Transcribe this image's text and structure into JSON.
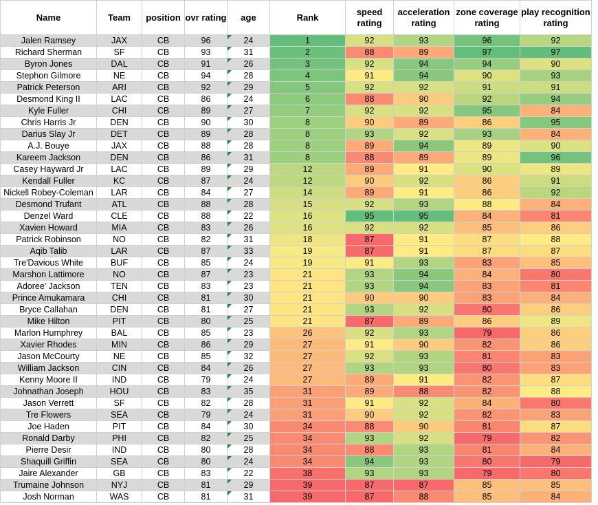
{
  "chart_data": {
    "type": "table",
    "columns": [
      "Name",
      "Team",
      "position",
      "ovr rating",
      "age",
      "Rank",
      "speed rating",
      "acceleration rating",
      "zone coverage rating",
      "play recognition rating"
    ],
    "rows": [
      [
        "Jalen Ramsey",
        "JAX",
        "CB",
        "96",
        "24",
        "1",
        "92",
        "93",
        "96",
        "92"
      ],
      [
        "Richard Sherman",
        "SF",
        "CB",
        "93",
        "31",
        "2",
        "88",
        "89",
        "97",
        "97"
      ],
      [
        "Byron Jones",
        "DAL",
        "CB",
        "91",
        "26",
        "3",
        "92",
        "94",
        "94",
        "90"
      ],
      [
        "Stephon Gilmore",
        "NE",
        "CB",
        "94",
        "28",
        "4",
        "91",
        "94",
        "90",
        "93"
      ],
      [
        "Patrick Peterson",
        "ARI",
        "CB",
        "92",
        "29",
        "5",
        "92",
        "92",
        "91",
        "91"
      ],
      [
        "Desmond King II",
        "LAC",
        "CB",
        "86",
        "24",
        "6",
        "88",
        "90",
        "92",
        "94"
      ],
      [
        "Kyle Fuller",
        "CHI",
        "CB",
        "89",
        "27",
        "7",
        "92",
        "92",
        "95",
        "84"
      ],
      [
        "Chris Harris Jr",
        "DEN",
        "CB",
        "90",
        "30",
        "8",
        "90",
        "89",
        "86",
        "95"
      ],
      [
        "Darius Slay Jr",
        "DET",
        "CB",
        "89",
        "28",
        "8",
        "93",
        "92",
        "93",
        "84"
      ],
      [
        "A.J. Bouye",
        "JAX",
        "CB",
        "88",
        "28",
        "8",
        "89",
        "94",
        "89",
        "90"
      ],
      [
        "Kareem Jackson",
        "DEN",
        "CB",
        "86",
        "31",
        "8",
        "88",
        "89",
        "89",
        "96"
      ],
      [
        "Casey Hayward Jr",
        "LAC",
        "CB",
        "89",
        "29",
        "12",
        "89",
        "91",
        "90",
        "89"
      ],
      [
        "Kendall Fuller",
        "KC",
        "CB",
        "87",
        "24",
        "12",
        "90",
        "92",
        "86",
        "91"
      ],
      [
        "Nickell Robey-Coleman",
        "LAR",
        "CB",
        "84",
        "27",
        "14",
        "89",
        "91",
        "86",
        "92"
      ],
      [
        "Desmond Trufant",
        "ATL",
        "CB",
        "88",
        "28",
        "15",
        "92",
        "93",
        "88",
        "84"
      ],
      [
        "Denzel Ward",
        "CLE",
        "CB",
        "88",
        "22",
        "16",
        "95",
        "95",
        "84",
        "81"
      ],
      [
        "Xavien Howard",
        "MIA",
        "CB",
        "83",
        "26",
        "16",
        "92",
        "92",
        "85",
        "86"
      ],
      [
        "Patrick Robinson",
        "NO",
        "CB",
        "82",
        "31",
        "18",
        "87",
        "91",
        "87",
        "88"
      ],
      [
        "Aqib Talib",
        "LAR",
        "CB",
        "87",
        "33",
        "19",
        "87",
        "91",
        "87",
        "87"
      ],
      [
        "Tre'Davious White",
        "BUF",
        "CB",
        "85",
        "24",
        "19",
        "91",
        "93",
        "83",
        "85"
      ],
      [
        "Marshon Lattimore",
        "NO",
        "CB",
        "87",
        "23",
        "21",
        "93",
        "94",
        "84",
        "80"
      ],
      [
        "Adoree' Jackson",
        "TEN",
        "CB",
        "83",
        "23",
        "21",
        "93",
        "94",
        "83",
        "81"
      ],
      [
        "Prince Amukamara",
        "CHI",
        "CB",
        "81",
        "30",
        "21",
        "90",
        "90",
        "83",
        "84"
      ],
      [
        "Bryce Callahan",
        "DEN",
        "CB",
        "81",
        "27",
        "21",
        "93",
        "92",
        "80",
        "86"
      ],
      [
        "Mike Hilton",
        "PIT",
        "CB",
        "80",
        "25",
        "21",
        "87",
        "89",
        "86",
        "89"
      ],
      [
        "Marlon Humphrey",
        "BAL",
        "CB",
        "85",
        "23",
        "26",
        "92",
        "93",
        "79",
        "86"
      ],
      [
        "Xavier Rhodes",
        "MIN",
        "CB",
        "86",
        "29",
        "27",
        "91",
        "90",
        "82",
        "86"
      ],
      [
        "Jason McCourty",
        "NE",
        "CB",
        "85",
        "32",
        "27",
        "92",
        "93",
        "81",
        "83"
      ],
      [
        "William Jackson",
        "CIN",
        "CB",
        "84",
        "26",
        "27",
        "93",
        "93",
        "80",
        "83"
      ],
      [
        "Kenny Moore II",
        "IND",
        "CB",
        "79",
        "24",
        "27",
        "89",
        "91",
        "82",
        "87"
      ],
      [
        "Johnathan Joseph",
        "HOU",
        "CB",
        "83",
        "35",
        "31",
        "89",
        "88",
        "82",
        "88"
      ],
      [
        "Jason Verrett",
        "SF",
        "CB",
        "82",
        "28",
        "31",
        "91",
        "92",
        "84",
        "80"
      ],
      [
        "Tre Flowers",
        "SEA",
        "CB",
        "79",
        "24",
        "31",
        "90",
        "92",
        "82",
        "83"
      ],
      [
        "Joe Haden",
        "PIT",
        "CB",
        "84",
        "30",
        "34",
        "88",
        "90",
        "81",
        "87"
      ],
      [
        "Ronald Darby",
        "PHI",
        "CB",
        "82",
        "25",
        "34",
        "93",
        "92",
        "79",
        "82"
      ],
      [
        "Pierre Desir",
        "IND",
        "CB",
        "80",
        "28",
        "34",
        "88",
        "93",
        "81",
        "84"
      ],
      [
        "Shaquill Griffin",
        "SEA",
        "CB",
        "80",
        "24",
        "34",
        "94",
        "93",
        "80",
        "79"
      ],
      [
        "Jaire Alexander",
        "GB",
        "CB",
        "83",
        "22",
        "38",
        "93",
        "93",
        "79",
        "80"
      ],
      [
        "Trumaine Johnson",
        "NYJ",
        "CB",
        "81",
        "29",
        "39",
        "87",
        "87",
        "85",
        "85"
      ],
      [
        "Josh Norman",
        "WAS",
        "CB",
        "81",
        "31",
        "39",
        "87",
        "88",
        "85",
        "84"
      ]
    ],
    "color_scales": {
      "low": "#f8696b",
      "mid": "#ffeb84",
      "high": "#63be7b",
      "rank_reversed": true
    },
    "band_color": "#d9d9d9",
    "triangle_color": "#1a8a3a"
  }
}
